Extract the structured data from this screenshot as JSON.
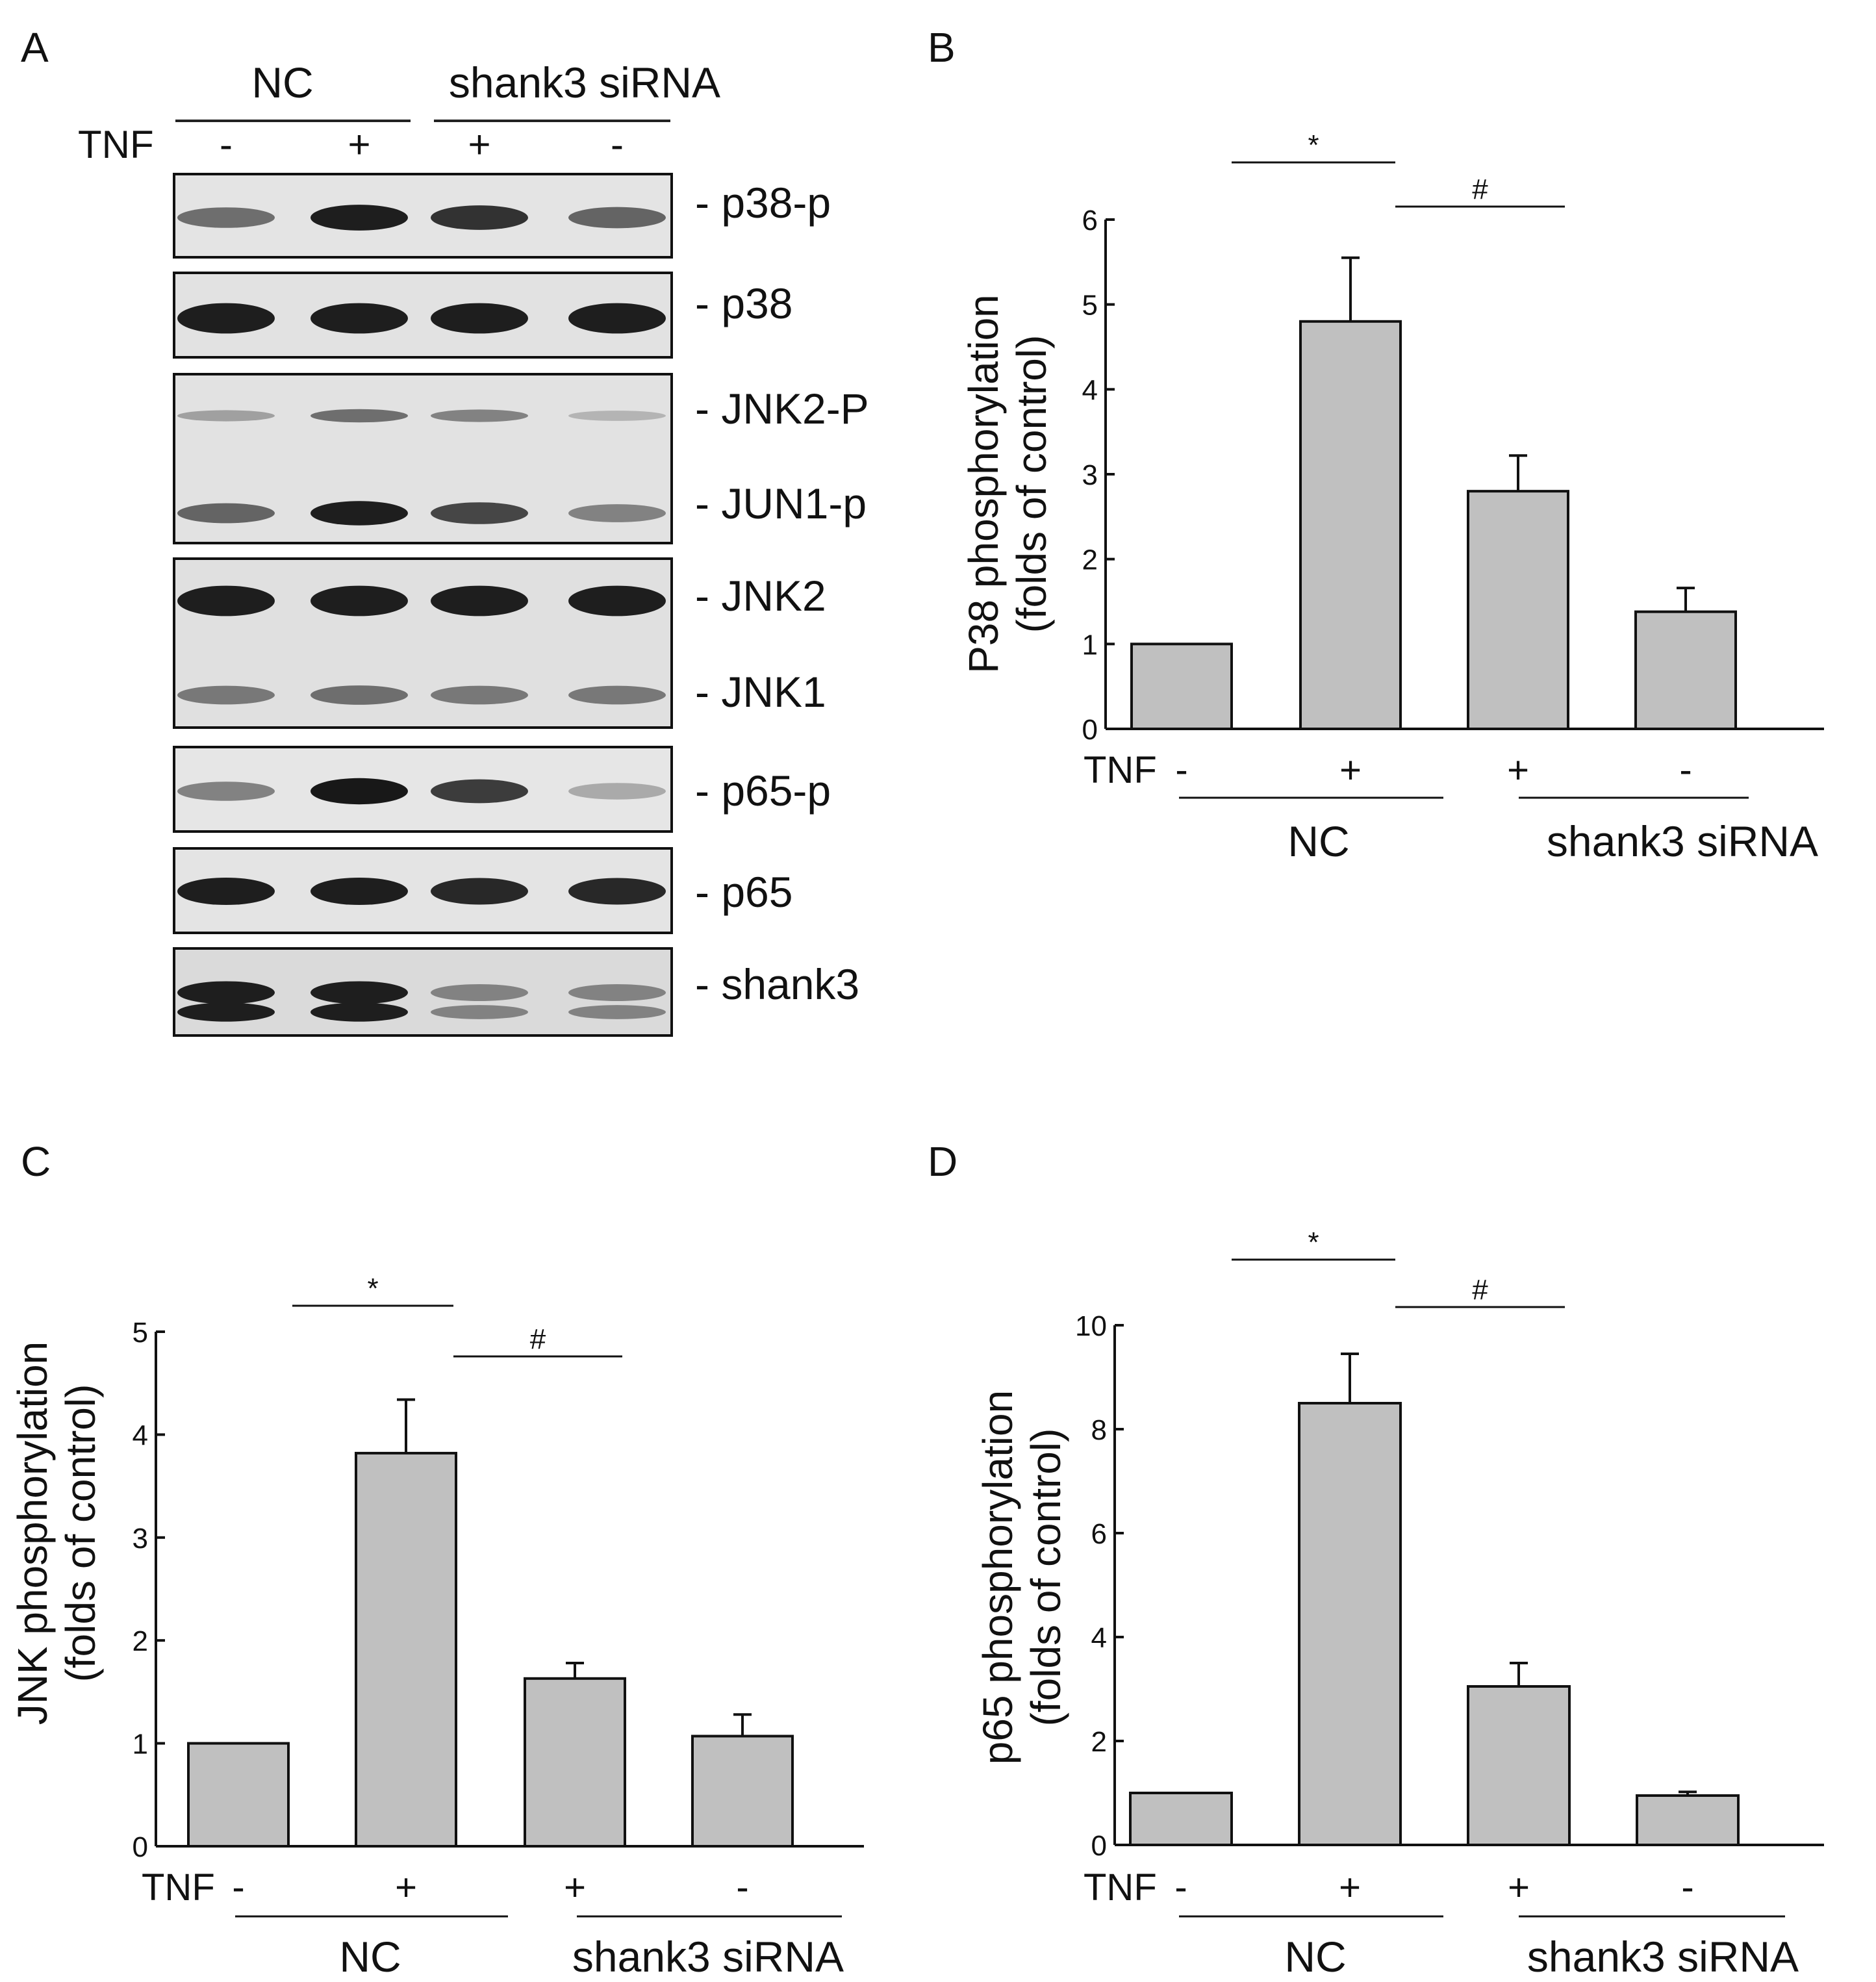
{
  "panel_labels": [
    "A",
    "B",
    "C",
    "D"
  ],
  "blot": {
    "groups": [
      {
        "label": "NC"
      },
      {
        "label": "shank3 siRNA"
      }
    ],
    "tnf_label": "TNF",
    "tnf_signs": [
      "-",
      "+",
      "+",
      "-"
    ],
    "bands": [
      {
        "label": "- p38-p",
        "intensity": [
          0.55,
          0.95,
          0.85,
          0.6
        ]
      },
      {
        "label": "- p38",
        "intensity": [
          0.95,
          0.95,
          0.95,
          0.95
        ]
      },
      {
        "label": "- JNK2-P",
        "intensity": [
          0.3,
          0.55,
          0.45,
          0.2
        ]
      },
      {
        "label": "- JUN1-p",
        "intensity": [
          0.6,
          0.95,
          0.75,
          0.45
        ]
      },
      {
        "label": "- JNK2",
        "intensity": [
          0.95,
          0.95,
          0.95,
          0.95
        ]
      },
      {
        "label": "- JNK1",
        "intensity": [
          0.5,
          0.55,
          0.5,
          0.5
        ]
      },
      {
        "label": "- p65-p",
        "intensity": [
          0.45,
          0.98,
          0.8,
          0.25
        ]
      },
      {
        "label": "- p65",
        "intensity": [
          0.95,
          0.95,
          0.9,
          0.9
        ]
      },
      {
        "label": "- shank3",
        "intensity": [
          0.95,
          0.95,
          0.45,
          0.45
        ]
      }
    ]
  },
  "chart_data": [
    {
      "panel": "B",
      "type": "bar",
      "categories": [
        "-",
        "+",
        "+",
        "-"
      ],
      "values": [
        1.0,
        4.8,
        2.8,
        1.38
      ],
      "errors": [
        0,
        0.75,
        0.42,
        0.28
      ],
      "ylabel": "P38 phosphorylation\n(folds of control)",
      "ylim": [
        0,
        6
      ],
      "yticks": [
        "0",
        "1",
        "2",
        "3",
        "4",
        "5",
        "6"
      ],
      "x_row_label": "TNF",
      "groups": [
        "NC",
        "shank3 siRNA"
      ],
      "significance": [
        "*",
        "#"
      ],
      "bar_color": "#c0c0c0",
      "grid": false
    },
    {
      "panel": "C",
      "type": "bar",
      "categories": [
        "-",
        "+",
        "+",
        "-"
      ],
      "values": [
        1.0,
        3.82,
        1.63,
        1.07
      ],
      "errors": [
        0,
        0.52,
        0.15,
        0.21
      ],
      "ylabel": "JNK phosphorylation\n(folds of control)",
      "ylim": [
        0,
        5
      ],
      "yticks": [
        "0",
        "1",
        "2",
        "3",
        "4",
        "5"
      ],
      "x_row_label": "TNF",
      "groups": [
        "NC",
        "shank3 siRNA"
      ],
      "significance": [
        "*",
        "#"
      ],
      "bar_color": "#c0c0c0",
      "grid": false
    },
    {
      "panel": "D",
      "type": "bar",
      "categories": [
        "-",
        "+",
        "+",
        "-"
      ],
      "values": [
        1.0,
        8.5,
        3.05,
        0.95
      ],
      "errors": [
        0,
        0.95,
        0.45,
        0.07
      ],
      "ylabel": "p65 phosphorylation\n(folds of control)",
      "ylim": [
        0,
        10
      ],
      "yticks": [
        "0",
        "2",
        "4",
        "6",
        "8",
        "10"
      ],
      "x_row_label": "TNF",
      "groups": [
        "NC",
        "shank3 siRNA"
      ],
      "significance": [
        "*",
        "#"
      ],
      "bar_color": "#c0c0c0",
      "grid": false
    }
  ]
}
